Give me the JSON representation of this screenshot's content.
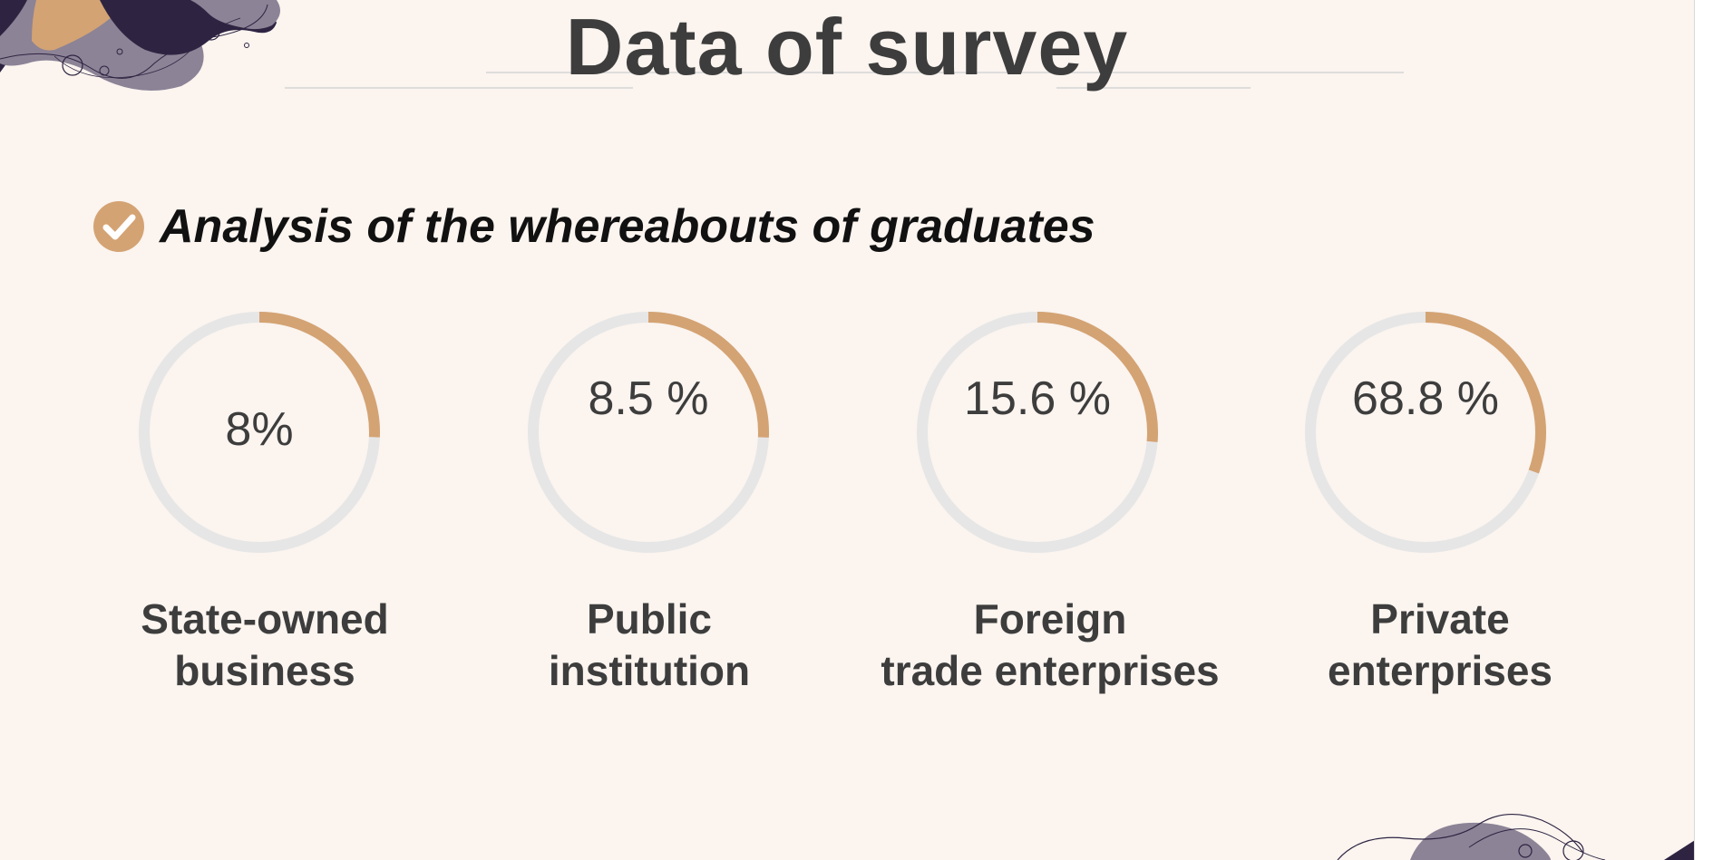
{
  "page": {
    "title": "Data of survey"
  },
  "section": {
    "subtitle": "Analysis of the whereabouts of graduates",
    "icon": "check-circle-icon"
  },
  "colors": {
    "background": "#fbf4ef",
    "accent": "#d4a373",
    "track": "#e6e6e6",
    "text": "#3d3d3d",
    "deco_dark": "#2e2442",
    "deco_mauve": "#8c8396"
  },
  "chart_data": {
    "type": "donut-gauges",
    "unit": "%",
    "items": [
      {
        "category": "State-owned\nbusiness",
        "value": 8,
        "value_text": "8%"
      },
      {
        "category": "Public\ninstitution",
        "value": 8.5,
        "value_text": "8.5 %"
      },
      {
        "category": "Foreign\ntrade enterprises",
        "value": 15.6,
        "value_text": "15.6 %"
      },
      {
        "category": "Private\nenterprises",
        "value": 68.8,
        "value_text": "68.8 %"
      }
    ]
  }
}
